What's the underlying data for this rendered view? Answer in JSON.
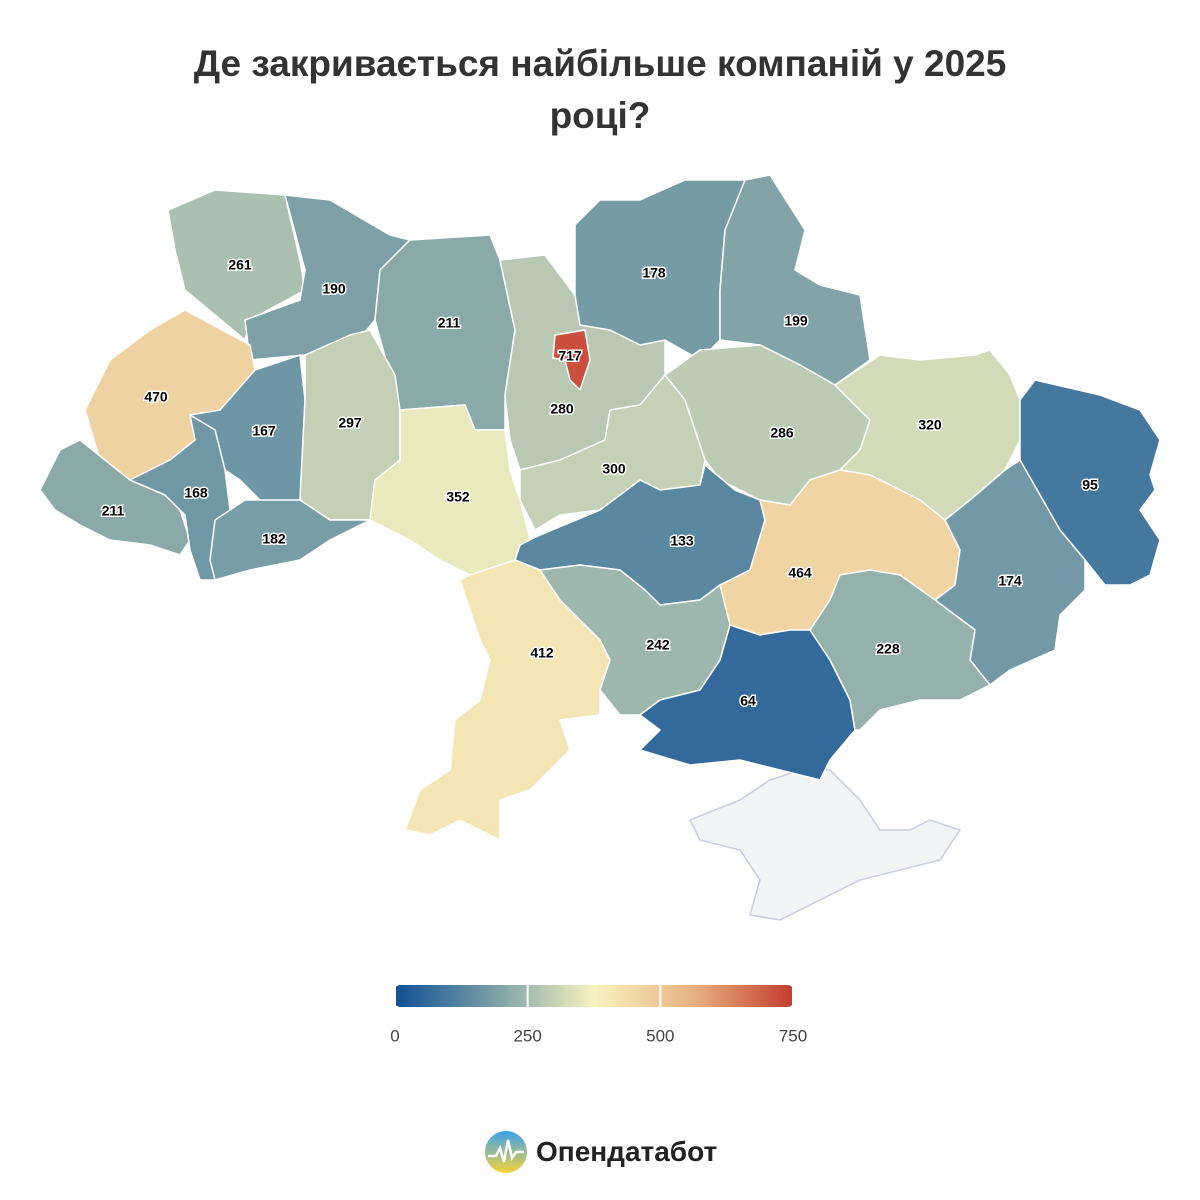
{
  "chart_data": {
    "type": "choropleth",
    "title": "Де закривається найбільше компаній у 2025 році?",
    "values": [
      261,
      190,
      211,
      717,
      280,
      178,
      199,
      470,
      167,
      297,
      352,
      300,
      286,
      320,
      95,
      211,
      168,
      182,
      133,
      464,
      174,
      412,
      242,
      64,
      228
    ],
    "colorlim": [
      0,
      750
    ],
    "colorticks": [
      0,
      250,
      500,
      750
    ],
    "colors": [
      "#0f4f96",
      "#7a9fa6",
      "#f7f3c0",
      "#e8b283",
      "#c33b2e"
    ],
    "no_data_color": "#f3f4f6"
  },
  "logo": {
    "text": "Опендатабот"
  }
}
